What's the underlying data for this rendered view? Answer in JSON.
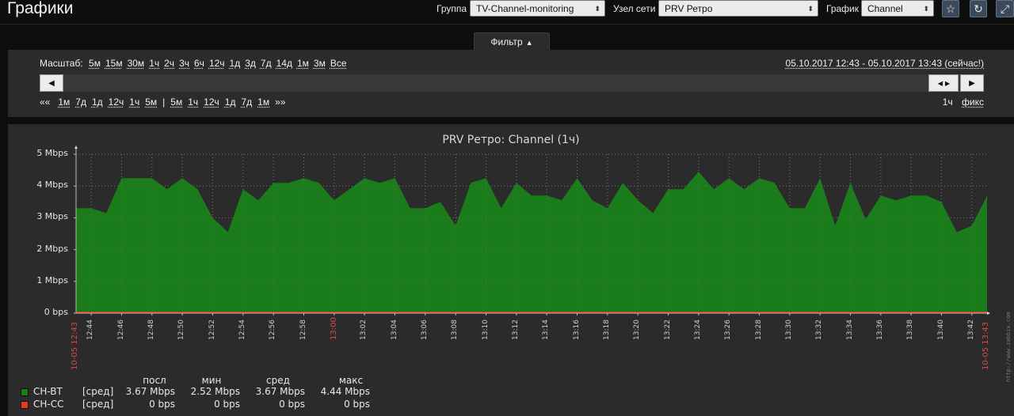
{
  "header": {
    "title": "Графики",
    "group_label": "Группа",
    "group_value": "TV-Channel-monitoring",
    "host_label": "Узел сети",
    "host_value": "PRV Ретро",
    "graph_label": "График",
    "graph_value": "Channel",
    "icons": [
      "star-icon",
      "refresh-icon",
      "fullscreen-icon"
    ]
  },
  "filter": {
    "tab_label": "Фильтр",
    "zoom_label": "Масштаб:",
    "zoom_options": [
      "5м",
      "15м",
      "30м",
      "1ч",
      "2ч",
      "3ч",
      "6ч",
      "12ч",
      "1д",
      "3д",
      "7д",
      "14д",
      "1м",
      "3м",
      "Все"
    ],
    "period_text": "05.10.2017 12:43 - 05.10.2017 13:43 (сейчас!)",
    "nav_back_prefix": "««",
    "nav_back": [
      "1м",
      "7д",
      "1д",
      "12ч",
      "1ч",
      "5м"
    ],
    "nav_separator": "|",
    "nav_forward": [
      "5м",
      "1ч",
      "12ч",
      "1д",
      "7д",
      "1м"
    ],
    "nav_forward_suffix": "»»",
    "period_length": "1ч",
    "fixed_label": "фикс"
  },
  "graph": {
    "title": "PRV Ретро: Channel (1ч)",
    "watermark": "http://www.zabbix.com",
    "legend_headers": [
      "посл",
      "мин",
      "сред",
      "макс"
    ],
    "legend": [
      {
        "name": "CH-BT",
        "func": "[сред]",
        "last": "3.67 Mbps",
        "min": "2.52 Mbps",
        "avg": "3.67 Mbps",
        "max": "4.44 Mbps",
        "color": "#1a7c1a"
      },
      {
        "name": "CH-CC",
        "func": "[сред]",
        "last": "0 bps",
        "min": "0 bps",
        "avg": "0 bps",
        "max": "0 bps",
        "color": "#e63c1e"
      }
    ]
  },
  "chart_data": {
    "type": "area",
    "title": "PRV Ретро: Channel (1ч)",
    "ylim": [
      0,
      5
    ],
    "y_tick_labels": [
      "0 bps",
      "1 Mbps",
      "2 Mbps",
      "3 Mbps",
      "4 Mbps",
      "5 Mbps"
    ],
    "x_tick_labels": [
      "12:44",
      "12:46",
      "12:48",
      "12:50",
      "12:52",
      "12:54",
      "12:56",
      "12:58",
      "13:00",
      "13:02",
      "13:04",
      "13:06",
      "13:08",
      "13:10",
      "13:12",
      "13:14",
      "13:16",
      "13:18",
      "13:20",
      "13:22",
      "13:24",
      "13:26",
      "13:28",
      "13:30",
      "13:32",
      "13:34",
      "13:36",
      "13:38",
      "13:40",
      "13:42"
    ],
    "x_range_labels": {
      "start": "10-05 12:43",
      "end": "10-05 13:43"
    },
    "grid": true,
    "series": [
      {
        "name": "CH-BT",
        "color": "#1a7c1a",
        "values": [
          3.3,
          3.3,
          3.15,
          4.25,
          4.25,
          4.25,
          3.9,
          4.25,
          3.9,
          3.0,
          2.55,
          3.9,
          3.55,
          4.1,
          4.1,
          4.25,
          4.1,
          3.55,
          3.9,
          4.25,
          4.1,
          4.25,
          3.3,
          3.3,
          3.5,
          2.75,
          4.1,
          4.25,
          3.3,
          4.1,
          3.7,
          3.7,
          3.55,
          4.25,
          3.55,
          3.3,
          4.1,
          3.55,
          3.15,
          3.9,
          3.9,
          4.45,
          3.9,
          4.25,
          3.9,
          4.25,
          4.1,
          3.3,
          3.3,
          4.25,
          2.75,
          4.1,
          2.95,
          3.7,
          3.55,
          3.7,
          3.7,
          3.5,
          2.55,
          2.75,
          3.7
        ]
      },
      {
        "name": "CH-CC",
        "color": "#e63c1e",
        "values": [
          0,
          0,
          0,
          0,
          0,
          0,
          0,
          0,
          0,
          0,
          0,
          0,
          0,
          0,
          0,
          0,
          0,
          0,
          0,
          0,
          0,
          0,
          0,
          0,
          0,
          0,
          0,
          0,
          0,
          0,
          0,
          0,
          0,
          0,
          0,
          0,
          0,
          0,
          0,
          0,
          0,
          0,
          0,
          0,
          0,
          0,
          0,
          0,
          0,
          0,
          0,
          0,
          0,
          0,
          0,
          0,
          0,
          0,
          0,
          0,
          0
        ]
      }
    ]
  }
}
